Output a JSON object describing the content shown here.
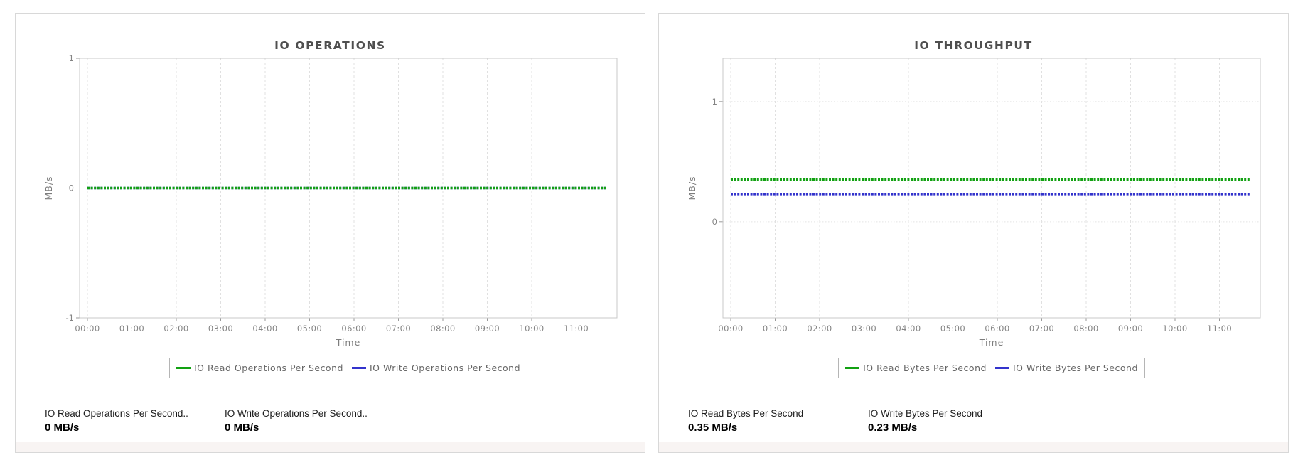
{
  "colors": {
    "read_green": "#12a112",
    "write_blue": "#3333cc",
    "panel_border": "#d8d8d8",
    "grid_vertical": "#e0e0e0",
    "grid_horizontal": "#e4e4e4",
    "plot_frame": "#c9c9c9",
    "tick_text": "#848484",
    "axis_label_text": "#7d7d7d",
    "title_text": "#4f4f4f",
    "legend_text": "#666666",
    "footer_strip": "#f8f4f3"
  },
  "chart_data": [
    {
      "type": "line",
      "title": "IO OPERATIONS",
      "xlabel": "Time",
      "ylabel": "MB/s",
      "x_ticks": [
        "00:00",
        "01:00",
        "02:00",
        "03:00",
        "04:00",
        "05:00",
        "06:00",
        "07:00",
        "08:00",
        "09:00",
        "10:00",
        "11:00"
      ],
      "y_ticks": [
        1,
        0,
        -1
      ],
      "ylim": [
        -1,
        1
      ],
      "grid": true,
      "legend_position": "bottom",
      "x_range_note": "flat constant series spanning 00:00 to ~11:45",
      "series": [
        {
          "name": "IO Read Operations Per Second",
          "color": "#12a112",
          "value": 0
        },
        {
          "name": "IO Write Operations Per Second",
          "color": "#3333cc",
          "value": 0
        }
      ]
    },
    {
      "type": "line",
      "title": "IO THROUGHPUT",
      "xlabel": "Time",
      "ylabel": "MB/s",
      "x_ticks": [
        "00:00",
        "01:00",
        "02:00",
        "03:00",
        "04:00",
        "05:00",
        "06:00",
        "07:00",
        "08:00",
        "09:00",
        "10:00",
        "11:00"
      ],
      "y_ticks": [
        1,
        0
      ],
      "ylim": [
        -0.8,
        1.36
      ],
      "grid": true,
      "legend_position": "bottom",
      "x_range_note": "flat constant series spanning 00:00 to ~11:45",
      "series": [
        {
          "name": "IO Read Bytes Per Second",
          "color": "#12a112",
          "value": 0.35
        },
        {
          "name": "IO Write Bytes Per Second",
          "color": "#3333cc",
          "value": 0.23
        }
      ]
    }
  ],
  "panels": [
    {
      "stats": [
        {
          "label": "IO Read Operations Per Second..",
          "value": "0 MB/s"
        },
        {
          "label": "IO Write Operations Per Second..",
          "value": "0 MB/s"
        }
      ]
    },
    {
      "stats": [
        {
          "label": "IO Read Bytes Per Second",
          "value": "0.35 MB/s"
        },
        {
          "label": "IO Write Bytes Per Second",
          "value": "0.23 MB/s"
        }
      ]
    }
  ]
}
